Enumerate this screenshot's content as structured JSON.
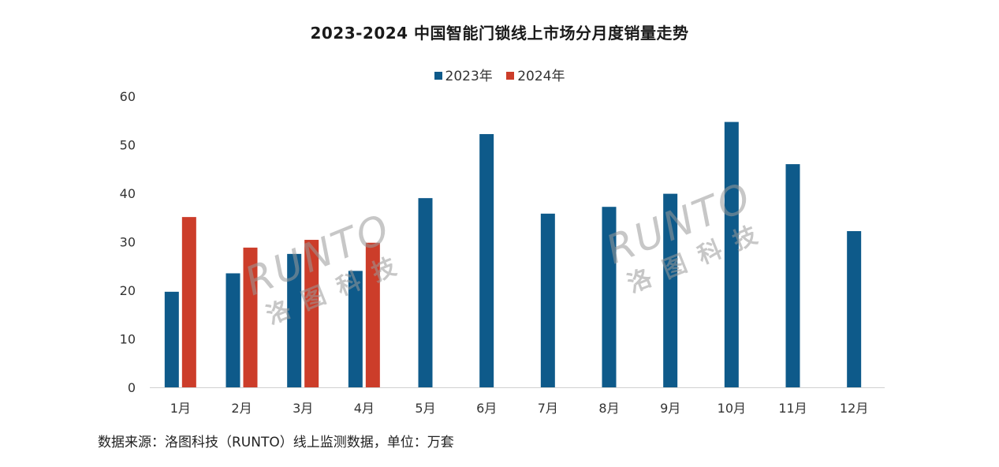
{
  "chart_data": {
    "type": "bar",
    "title": "2023-2024 中国智能门锁线上市场分月度销量走势",
    "categories": [
      "1月",
      "2月",
      "3月",
      "4月",
      "5月",
      "6月",
      "7月",
      "8月",
      "9月",
      "10月",
      "11月",
      "12月"
    ],
    "series": [
      {
        "name": "2023年",
        "color": "#0e5a8a",
        "values": [
          19.7,
          23.5,
          27.5,
          24.0,
          39.0,
          52.2,
          35.8,
          37.2,
          39.9,
          54.7,
          46.0,
          32.2
        ]
      },
      {
        "name": "2024年",
        "color": "#cc3d2a",
        "values": [
          35.1,
          28.8,
          30.4,
          29.8,
          null,
          null,
          null,
          null,
          null,
          null,
          null,
          null
        ]
      }
    ],
    "ylim": [
      0,
      60
    ],
    "yticks": [
      0,
      10,
      20,
      30,
      40,
      50,
      60
    ],
    "xlabel": "",
    "ylabel": "",
    "legend_position": "top-center",
    "grid": false
  },
  "watermark": {
    "brand": "RUNTO",
    "brand_cn": "洛图科技"
  },
  "source_note": "数据来源：洛图科技（RUNTO）线上监测数据，单位：万套"
}
